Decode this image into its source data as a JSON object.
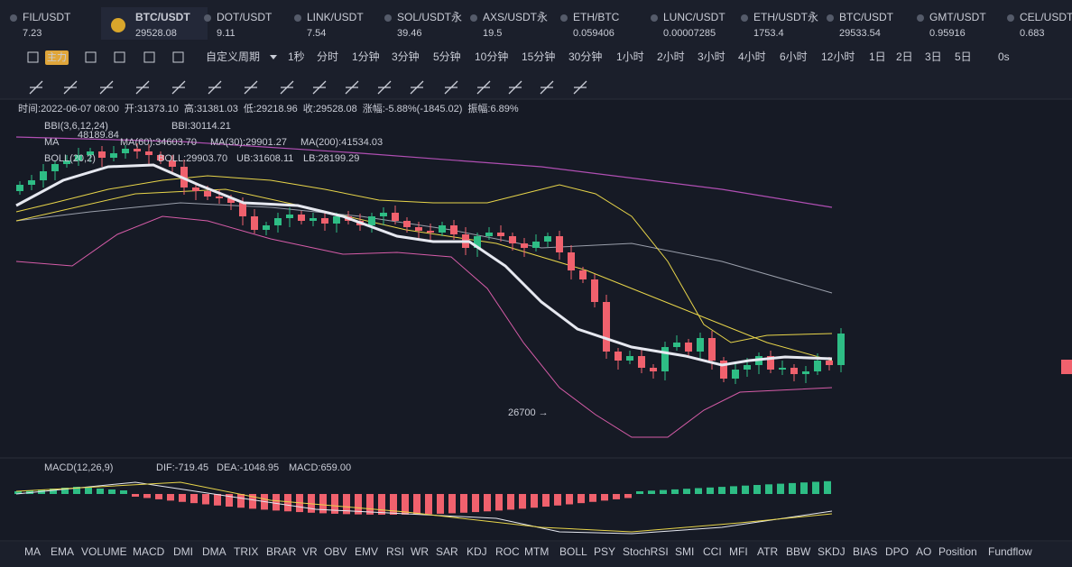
{
  "tickers": [
    {
      "symbol": "FIL/USDT",
      "price": "7.23",
      "color": "#f0616d"
    },
    {
      "symbol": "BTC/USDT",
      "price": "29528.08",
      "color": "#f0616d"
    },
    {
      "symbol": "DOT/USDT",
      "price": "9.11",
      "color": "#2ebd85"
    },
    {
      "symbol": "LINK/USDT",
      "price": "7.54",
      "color": "#f0616d"
    },
    {
      "symbol": "SOL/USDT永",
      "price": "39.46",
      "color": "#2ebd85"
    },
    {
      "symbol": "AXS/USDT永",
      "price": "19.5",
      "color": "#f0616d"
    },
    {
      "symbol": "ETH/BTC",
      "price": "0.059406",
      "color": "#2ebd85"
    },
    {
      "symbol": "LUNC/USDT",
      "price": "0.00007285",
      "color": "#f0616d"
    },
    {
      "symbol": "ETH/USDT永",
      "price": "1753.4",
      "color": "#2ebd85"
    },
    {
      "symbol": "BTC/USDT",
      "price": "29533.54",
      "color": "#2ebd85"
    },
    {
      "symbol": "GMT/USDT",
      "price": "0.95916",
      "color": "#2ebd85"
    },
    {
      "symbol": "CEL/USDT",
      "price": "0.683",
      "color": "#f0616d"
    }
  ],
  "toolbar": {
    "main": "主力",
    "period": "自定义周期",
    "intervals": [
      "1秒",
      "分时",
      "1分钟",
      "3分钟",
      "5分钟",
      "10分钟",
      "15分钟",
      "30分钟",
      "1小时",
      "2小时",
      "3小时",
      "4小时",
      "6小时",
      "12小时",
      "1日",
      "2日",
      "3日",
      "5日"
    ],
    "active": "1日",
    "refresh": "0s"
  },
  "info": [
    {
      "label": "时间:",
      "value": "2022-06-07 08:00"
    },
    {
      "label": "开:",
      "value": "31373.10"
    },
    {
      "label": "高:",
      "value": "31381.03"
    },
    {
      "label": "低:",
      "value": "29218.96"
    },
    {
      "label": "收:",
      "value": "29528.08"
    },
    {
      "label": "涨幅:",
      "value": "-5.88%(-1845.02)"
    },
    {
      "label": "振幅:",
      "value": "6.89%"
    }
  ],
  "indicators": {
    "bbi": {
      "name": "BBI(3,6,12,24)",
      "value": "BBI:30114.21"
    },
    "ma": {
      "name": "MA",
      "values": [
        "MA(60):34603.70",
        "MA(30):29901.27",
        "MA(200):41534.03"
      ]
    },
    "boll": {
      "name": "BOLL(20,2)",
      "values": [
        "BOLL:29903.70",
        "UB:31608.11",
        "LB:28199.29"
      ]
    },
    "high_mark": "48189.84",
    "low_mark": "26700 →"
  },
  "macd": {
    "name": "MACD(12,26,9)",
    "values": [
      "DIF:-719.45",
      "DEA:-1048.95",
      "MACD:659.00"
    ]
  },
  "tabs": {
    "items": [
      "MA",
      "EMA",
      "VOLUME",
      "MACD",
      "DMI",
      "DMA",
      "TRIX",
      "BRAR",
      "VR",
      "OBV",
      "EMV",
      "RSI",
      "WR",
      "SAR",
      "KDJ",
      "ROC",
      "MTM",
      "BOLL",
      "PSY",
      "StochRSI",
      "SMI",
      "CCI",
      "MFI",
      "ATR",
      "BBW",
      "SKDJ",
      "BIAS",
      "DPO",
      "AO",
      "Position",
      "Fundflow"
    ],
    "active": "MACD"
  }
}
